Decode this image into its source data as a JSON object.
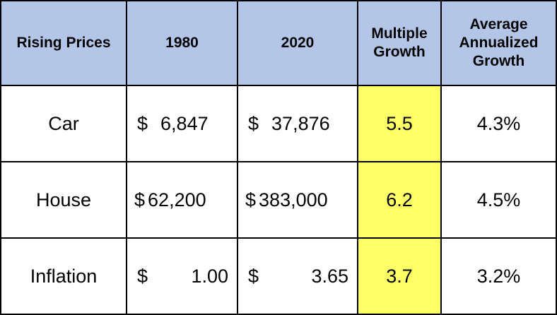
{
  "headers": {
    "label": "Rising Prices",
    "y1980": "1980",
    "y2020": "2020",
    "multiple": "Multiple Growth",
    "annualized": "Average Annualized Growth"
  },
  "rows": [
    {
      "name": "Car",
      "sym1": "$",
      "v1980": "6,847",
      "sym2": "$",
      "v2020": "37,876",
      "multiple": "5.5",
      "annualized": "4.3%"
    },
    {
      "name": "House",
      "sym1": "$",
      "v1980": "62,200",
      "sym2": "$",
      "v2020": "383,000",
      "multiple": "6.2",
      "annualized": "4.5%"
    },
    {
      "name": "Inflation",
      "sym1": "$",
      "v1980": "1.00",
      "sym2": "$",
      "v2020": "3.65",
      "multiple": "3.7",
      "annualized": "3.2%"
    }
  ],
  "colors": {
    "header_bg": "#b4c6e7",
    "highlight_bg": "#ffff66"
  }
}
